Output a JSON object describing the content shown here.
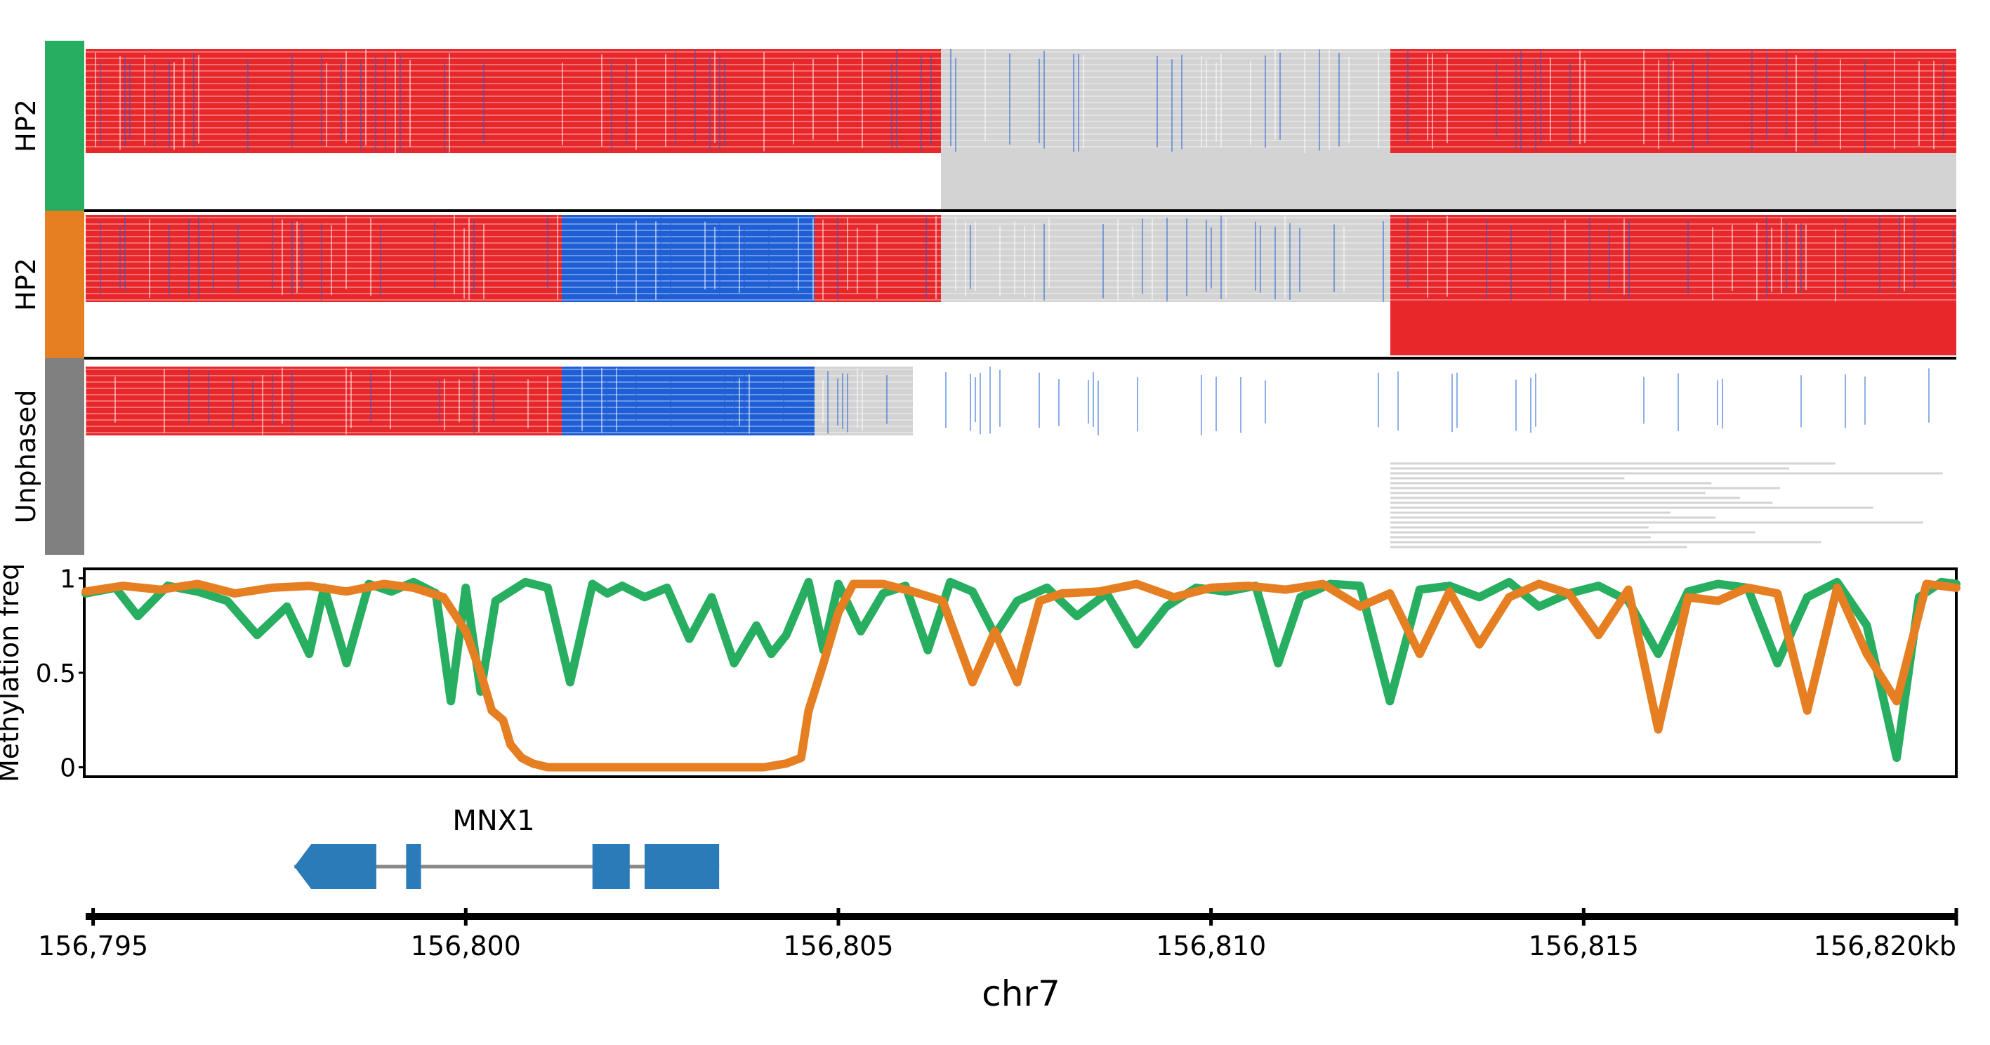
{
  "colors": {
    "hp1": "#27ae60",
    "hp2": "#e67e22",
    "unphased": "#808080",
    "methylated": "#e8272a",
    "unmethylated": "#1f5fd6",
    "read": "#d3d3d3",
    "gene": "#2b7bb9",
    "intron": "#888888"
  },
  "tracks": {
    "haplotype_labels": [
      "HP2",
      "HP2",
      "Unphased"
    ]
  },
  "chart_data": {
    "type": "line",
    "xlabel": "chr7",
    "ylabel": "Methylation freq",
    "xlim": [
      156794.9,
      156820.0
    ],
    "ylim": [
      -0.05,
      1.05
    ],
    "y_ticks": [
      0,
      0.5,
      1
    ],
    "y_tick_labels": [
      "0",
      "0.5",
      "1"
    ],
    "x_ticks": [
      156795,
      156800,
      156805,
      156810,
      156815,
      156820
    ],
    "x_tick_labels": [
      "156,795",
      "156,800",
      "156,805",
      "156,810",
      "156,815",
      "156,820kb"
    ],
    "series": [
      {
        "color": "#27ae60",
        "x": [
          156794.9,
          156795.3,
          156795.6,
          156796.0,
          156796.4,
          156796.8,
          156797.2,
          156797.6,
          156797.9,
          156798.1,
          156798.4,
          156798.7,
          156799.0,
          156799.3,
          156799.6,
          156799.8,
          156800.0,
          156800.2,
          156800.4,
          156800.8,
          156801.1,
          156801.4,
          156801.7,
          156801.9,
          156802.1,
          156802.4,
          156802.7,
          156803.0,
          156803.3,
          156803.6,
          156803.9,
          156804.1,
          156804.3,
          156804.6,
          156804.8,
          156805.0,
          156805.3,
          156805.6,
          156805.9,
          156806.2,
          156806.5,
          156806.8,
          156807.1,
          156807.4,
          156807.8,
          156808.2,
          156808.6,
          156809.0,
          156809.4,
          156809.8,
          156810.2,
          156810.6,
          156810.9,
          156811.2,
          156811.6,
          156812.0,
          156812.4,
          156812.8,
          156813.2,
          156813.6,
          156814.0,
          156814.4,
          156814.8,
          156815.2,
          156815.6,
          156816.0,
          156816.4,
          156816.8,
          156817.2,
          156817.6,
          156818.0,
          156818.4,
          156818.8,
          156819.0,
          156819.2,
          156819.5,
          156819.8,
          156820.0
        ],
        "y": [
          0.92,
          0.95,
          0.8,
          0.96,
          0.93,
          0.88,
          0.7,
          0.85,
          0.6,
          0.95,
          0.55,
          0.97,
          0.93,
          0.98,
          0.92,
          0.35,
          0.95,
          0.4,
          0.88,
          0.98,
          0.95,
          0.45,
          0.97,
          0.92,
          0.96,
          0.9,
          0.95,
          0.68,
          0.9,
          0.55,
          0.75,
          0.6,
          0.7,
          0.98,
          0.62,
          0.97,
          0.72,
          0.92,
          0.96,
          0.62,
          0.98,
          0.93,
          0.7,
          0.88,
          0.95,
          0.8,
          0.92,
          0.65,
          0.85,
          0.95,
          0.93,
          0.96,
          0.55,
          0.9,
          0.97,
          0.96,
          0.35,
          0.94,
          0.96,
          0.9,
          0.98,
          0.85,
          0.92,
          0.96,
          0.88,
          0.6,
          0.93,
          0.97,
          0.95,
          0.55,
          0.9,
          0.98,
          0.75,
          0.4,
          0.05,
          0.9,
          0.98,
          0.97
        ]
      },
      {
        "color": "#e67e22",
        "x": [
          156794.9,
          156795.4,
          156795.9,
          156796.4,
          156796.9,
          156797.4,
          156797.9,
          156798.4,
          156798.9,
          156799.3,
          156799.7,
          156800.0,
          156800.2,
          156800.35,
          156800.5,
          156800.6,
          156800.75,
          156800.9,
          156801.1,
          156801.5,
          156802.0,
          156802.5,
          156803.0,
          156803.5,
          156804.0,
          156804.3,
          156804.5,
          156804.6,
          156804.8,
          156805.0,
          156805.2,
          156805.6,
          156806.0,
          156806.4,
          156806.8,
          156807.1,
          156807.4,
          156807.7,
          156808.0,
          156808.5,
          156809.0,
          156809.5,
          156810.0,
          156810.5,
          156811.0,
          156811.5,
          156812.0,
          156812.4,
          156812.8,
          156813.2,
          156813.6,
          156814.0,
          156814.4,
          156814.8,
          156815.2,
          156815.6,
          156816.0,
          156816.4,
          156816.8,
          156817.2,
          156817.6,
          156818.0,
          156818.4,
          156818.8,
          156819.2,
          156819.6,
          156820.0
        ],
        "y": [
          0.93,
          0.96,
          0.94,
          0.97,
          0.92,
          0.95,
          0.96,
          0.93,
          0.97,
          0.95,
          0.9,
          0.72,
          0.5,
          0.3,
          0.25,
          0.12,
          0.05,
          0.02,
          0.0,
          0.0,
          0.0,
          0.0,
          0.0,
          0.0,
          0.0,
          0.02,
          0.05,
          0.3,
          0.55,
          0.82,
          0.97,
          0.97,
          0.93,
          0.88,
          0.45,
          0.72,
          0.45,
          0.88,
          0.92,
          0.93,
          0.97,
          0.9,
          0.95,
          0.96,
          0.94,
          0.97,
          0.85,
          0.92,
          0.6,
          0.93,
          0.65,
          0.9,
          0.97,
          0.92,
          0.7,
          0.94,
          0.2,
          0.9,
          0.88,
          0.95,
          0.92,
          0.3,
          0.95,
          0.6,
          0.35,
          0.97,
          0.95
        ]
      }
    ]
  },
  "gene": {
    "name": "MNX1",
    "strand": "-",
    "exons": [
      [
        156797.7,
        156798.8
      ],
      [
        156799.2,
        156799.4
      ],
      [
        156801.7,
        156802.2
      ],
      [
        156802.4,
        156803.4
      ]
    ]
  }
}
